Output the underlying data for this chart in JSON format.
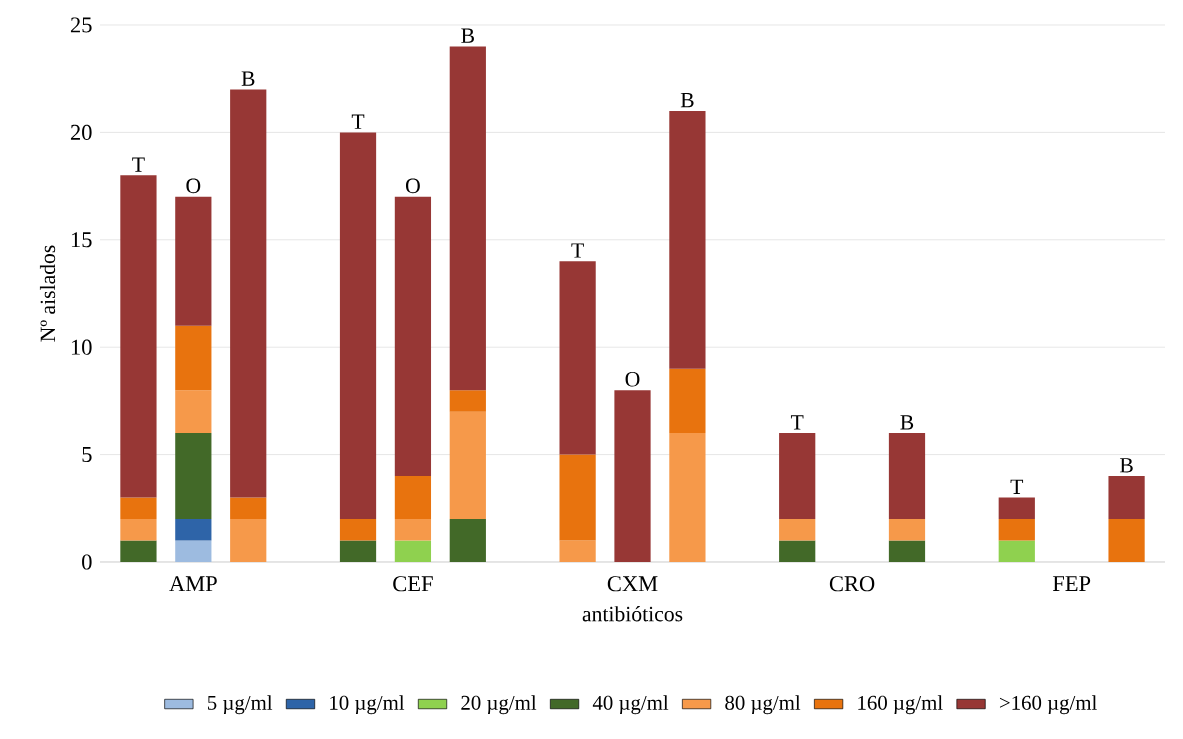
{
  "chart_data": {
    "type": "bar",
    "stacked": true,
    "xlabel": "antibióticos",
    "ylabel": "Nº aislados",
    "categories": [
      null,
      "AMP",
      null,
      null,
      null,
      "CEF",
      null,
      null,
      null,
      "CXM",
      null,
      null,
      null,
      "CRO",
      null,
      null,
      null,
      "FEP",
      null
    ],
    "series": [
      {
        "name": "5 µg/ml",
        "color": "#9dbbe0",
        "values": [
          null,
          1,
          null,
          null,
          null,
          null,
          null,
          null,
          null,
          null,
          null,
          null,
          null,
          null,
          null,
          null,
          null,
          null,
          null
        ]
      },
      {
        "name": "10 µg/ml",
        "color": "#2e64a8",
        "values": [
          null,
          1,
          null,
          null,
          null,
          null,
          null,
          null,
          null,
          null,
          null,
          null,
          null,
          null,
          null,
          null,
          null,
          null,
          null
        ]
      },
      {
        "name": "20 µg/ml",
        "color": "#8fd14f",
        "values": [
          null,
          null,
          null,
          null,
          null,
          1,
          null,
          null,
          null,
          null,
          null,
          null,
          null,
          null,
          null,
          null,
          1,
          null,
          null
        ]
      },
      {
        "name": "40 µg/ml",
        "color": "#426928",
        "values": [
          1,
          4,
          null,
          null,
          1,
          null,
          2,
          null,
          null,
          null,
          null,
          null,
          1,
          null,
          1,
          null,
          null,
          null,
          null
        ]
      },
      {
        "name": "80 µg/ml",
        "color": "#f6994a",
        "values": [
          1,
          2,
          2,
          null,
          null,
          1,
          5,
          null,
          1,
          null,
          6,
          null,
          1,
          null,
          1,
          null,
          null,
          null,
          null
        ]
      },
      {
        "name": "160 µg/ml",
        "color": "#e8730e",
        "values": [
          1,
          3,
          1,
          null,
          1,
          2,
          1,
          null,
          4,
          null,
          3,
          null,
          null,
          null,
          null,
          null,
          1,
          null,
          2
        ]
      },
      {
        "name": ">160 µg/ml",
        "color": "#973735",
        "values": [
          15,
          6,
          19,
          null,
          18,
          13,
          16,
          null,
          9,
          8,
          12,
          null,
          4,
          null,
          4,
          null,
          1,
          null,
          2
        ],
        "value_labels": [
          "T",
          "O",
          "B",
          null,
          "T",
          "O",
          "B",
          null,
          "T",
          "O",
          "B",
          null,
          "T",
          null,
          "B",
          null,
          "T",
          null,
          "B"
        ]
      }
    ],
    "ylim": [
      0,
      25
    ],
    "yticks": [
      0,
      5,
      10,
      15,
      20,
      25
    ],
    "grid": "y",
    "legend": "bottom"
  }
}
